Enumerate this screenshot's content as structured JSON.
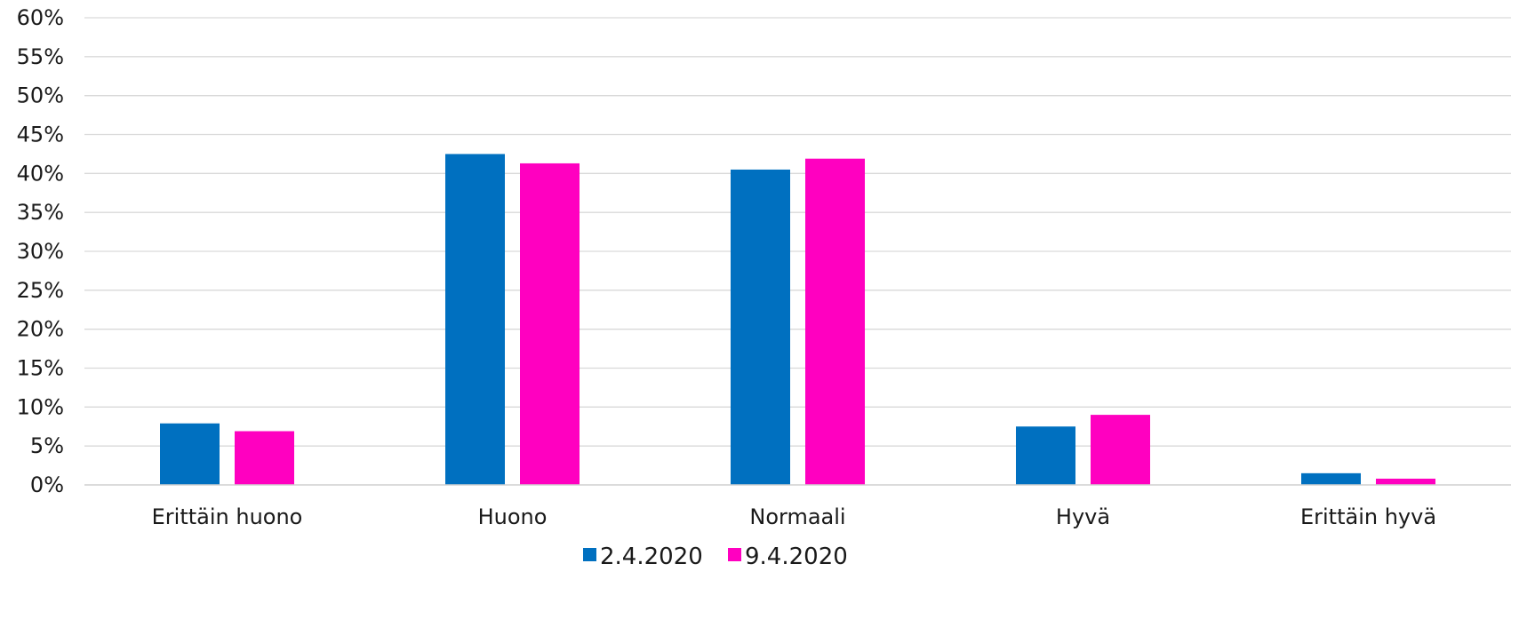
{
  "chart_data": {
    "type": "bar",
    "title": "",
    "xlabel": "",
    "ylabel": "",
    "categories": [
      "Erittäin huono",
      "Huono",
      "Normaali",
      "Hyvä",
      "Erittäin hyvä"
    ],
    "series": [
      {
        "name": "2.4.2020",
        "color": "#0070c0",
        "values": [
          7.9,
          42.5,
          40.5,
          7.5,
          1.5
        ]
      },
      {
        "name": "9.4.2020",
        "color": "#ff00c0",
        "values": [
          6.9,
          41.3,
          41.9,
          9.0,
          0.8
        ]
      }
    ],
    "ylim": [
      0,
      60
    ],
    "yticks": [
      0,
      5,
      10,
      15,
      20,
      25,
      30,
      35,
      40,
      45,
      50,
      55,
      60
    ],
    "ytick_labels": [
      "0%",
      "5%",
      "10%",
      "15%",
      "20%",
      "25%",
      "30%",
      "35%",
      "40%",
      "45%",
      "50%",
      "55%",
      "60%"
    ],
    "grid": true,
    "legend_position": "bottom"
  }
}
